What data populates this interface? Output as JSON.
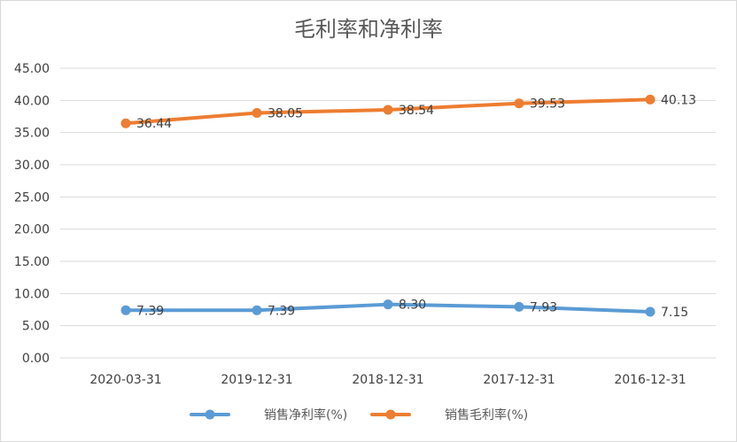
{
  "chart_data": {
    "type": "line",
    "title": "毛利率和净利率",
    "categories": [
      "2020-03-31",
      "2019-12-31",
      "2018-12-31",
      "2017-12-31",
      "2016-12-31"
    ],
    "series": [
      {
        "name": "销售净利率(%)",
        "values": [
          7.39,
          7.39,
          8.3,
          7.93,
          7.15
        ],
        "labels": [
          "7.39",
          "7.39",
          "8.30",
          "7.93",
          "7.15"
        ],
        "color": "#5b9bd5"
      },
      {
        "name": "销售毛利率(%)",
        "values": [
          36.44,
          38.05,
          38.54,
          39.53,
          40.13
        ],
        "labels": [
          "36.44",
          "38.05",
          "38.54",
          "39.53",
          "40.13"
        ],
        "color": "#ed7d31"
      }
    ],
    "ylim": [
      0,
      45
    ],
    "yticks": [
      "0.00",
      "5.00",
      "10.00",
      "15.00",
      "20.00",
      "25.00",
      "30.00",
      "35.00",
      "40.00",
      "45.00"
    ],
    "grid": true,
    "legend": "bottom"
  }
}
